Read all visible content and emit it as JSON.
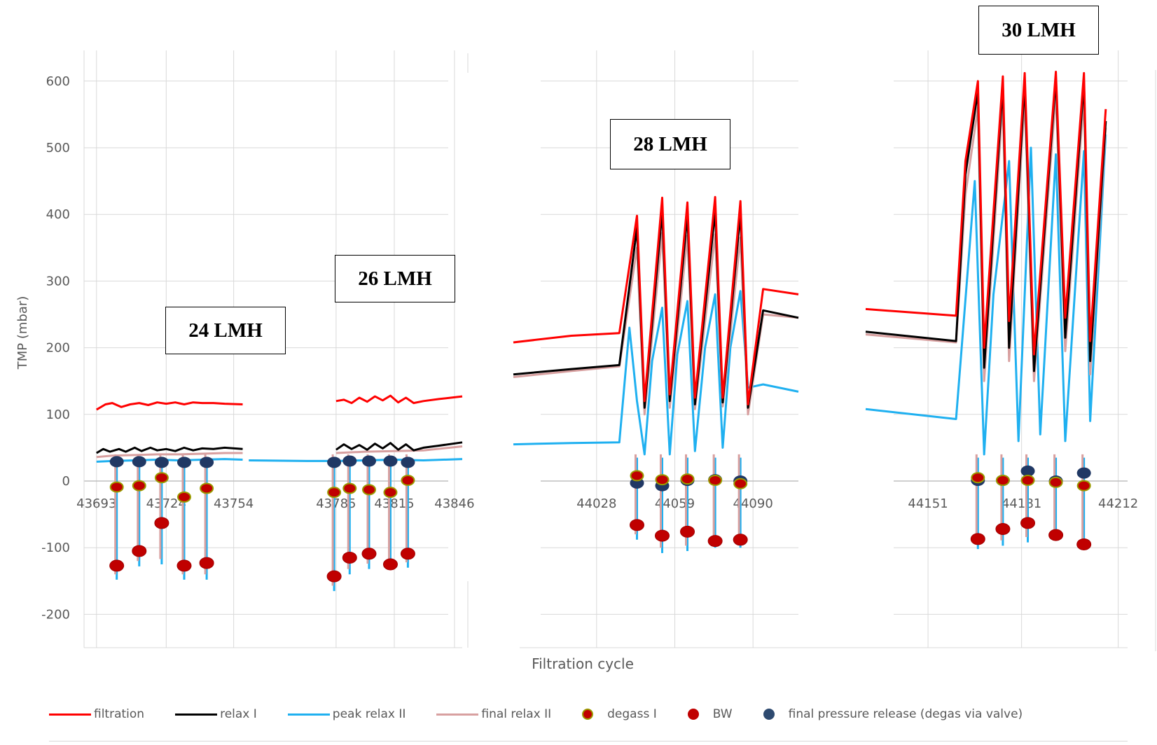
{
  "chart_data": {
    "type": "line",
    "title": "",
    "xlabel": "Filtration cycle",
    "ylabel": "TMP (mbar)",
    "ylim": [
      -200,
      650
    ],
    "yticks": [
      -200,
      -100,
      0,
      100,
      200,
      300,
      400,
      500,
      600
    ],
    "grid": true,
    "legend_position": "bottom",
    "colors": {
      "filtration": "#ff0000",
      "relax I": "#000000",
      "peak relax II": "#1fb0f0",
      "final relax II": "#d8a0a0",
      "degass I": "#c00000",
      "BW": "#c00000",
      "final pressure release (degas via valve)": "#203864"
    },
    "panels": [
      {
        "flux_label": "24 LMH",
        "xlim": [
          43675,
          43770
        ],
        "xticks": [
          "43693",
          "43724",
          "43754"
        ],
        "series": [
          {
            "name": "filtration",
            "x": [
              43693,
              43697,
              43700,
              43704,
              43708,
              43712,
              43716,
              43720,
              43724,
              43728,
              43732,
              43736,
              43740,
              43745,
              43750,
              43758
            ],
            "y": [
              107,
              115,
              117,
              111,
              115,
              117,
              114,
              118,
              116,
              118,
              115,
              118,
              117,
              117,
              116,
              115
            ]
          },
          {
            "name": "relax I",
            "x": [
              43693,
              43696,
              43699,
              43703,
              43706,
              43710,
              43713,
              43717,
              43720,
              43724,
              43728,
              43732,
              43736,
              43740,
              43745,
              43750,
              43758
            ],
            "y": [
              42,
              48,
              44,
              48,
              44,
              50,
              45,
              50,
              46,
              48,
              45,
              50,
              46,
              49,
              48,
              50,
              48
            ]
          },
          {
            "name": "peak relax II",
            "x": [
              43693,
              43700,
              43710,
              43720,
              43730,
              43740,
              43750,
              43758
            ],
            "y": [
              29,
              30,
              31,
              32,
              31,
              32,
              33,
              32
            ]
          },
          {
            "name": "final relax II",
            "x": [
              43693,
              43700,
              43710,
              43720,
              43730,
              43740,
              43750,
              43758
            ],
            "y": [
              36,
              38,
              39,
              40,
              40,
              41,
              42,
              42
            ]
          }
        ],
        "spikes_x": [
          43702,
          43712,
          43722,
          43732,
          43742
        ],
        "spike_min": [
          -148,
          -128,
          -125,
          -148,
          -148
        ],
        "points": {
          "degass I": {
            "x": [
              43702,
              43712,
              43722,
              43732,
              43742
            ],
            "y": [
              -9,
              -7,
              5,
              -24,
              -11
            ]
          },
          "BW": {
            "x": [
              43702,
              43712,
              43722,
              43732,
              43742
            ],
            "y": [
              -127,
              -105,
              -63,
              -127,
              -123
            ]
          },
          "final pressure release (degas via valve)": {
            "x": [
              43702,
              43712,
              43722,
              43732,
              43742
            ],
            "y": [
              29,
              29,
              28,
              28,
              28
            ]
          }
        }
      },
      {
        "flux_label": "26 LMH",
        "xlim": [
          43767,
          43850
        ],
        "xticks": [
          "43785",
          "43815",
          "43846"
        ],
        "series": [
          {
            "name": "filtration",
            "x": [
              43785,
              43789,
              43793,
              43797,
              43801,
              43805,
              43809,
              43813,
              43817,
              43821,
              43825,
              43830,
              43838,
              43850
            ],
            "y": [
              120,
              122,
              117,
              125,
              119,
              127,
              121,
              128,
              118,
              125,
              117,
              120,
              123,
              127
            ]
          },
          {
            "name": "relax I",
            "x": [
              43785,
              43789,
              43793,
              43797,
              43801,
              43805,
              43809,
              43813,
              43817,
              43821,
              43825,
              43830,
              43838,
              43850
            ],
            "y": [
              47,
              55,
              48,
              54,
              47,
              56,
              49,
              57,
              47,
              55,
              46,
              50,
              53,
              58
            ]
          },
          {
            "name": "peak relax II",
            "x": [
              43740,
              43770,
              43785,
              43800,
              43815,
              43830,
              43850
            ],
            "y": [
              31,
              30,
              30,
              31,
              32,
              31,
              33
            ]
          },
          {
            "name": "final relax II",
            "x": [
              43785,
              43800,
              43815,
              43830,
              43850
            ],
            "y": [
              42,
              44,
              45,
              46,
              52
            ]
          }
        ],
        "spikes_x": [
          43784,
          43792,
          43802,
          43813,
          43822
        ],
        "spike_min": [
          -165,
          -140,
          -132,
          -125,
          -130
        ],
        "points": {
          "degass I": {
            "x": [
              43784,
              43792,
              43802,
              43813,
              43822
            ],
            "y": [
              -17,
              -11,
              -13,
              -17,
              1
            ]
          },
          "BW": {
            "x": [
              43784,
              43792,
              43802,
              43813,
              43822
            ],
            "y": [
              -143,
              -115,
              -109,
              -125,
              -109
            ]
          },
          "final pressure release (degas via valve)": {
            "x": [
              43784,
              43792,
              43802,
              43813,
              43822
            ],
            "y": [
              28,
              30,
              30,
              30,
              28
            ]
          }
        }
      },
      {
        "flux_label": "28 LMH",
        "xlim": [
          43995,
          44108
        ],
        "xticks": [
          "44028",
          "44059",
          "44090"
        ],
        "series": [
          {
            "name": "filtration",
            "x": [
              43995,
              44018,
              44037,
              44044,
              44047,
              44054,
              44057,
              44064,
              44067,
              44075,
              44078,
              44085,
              44088,
              44094,
              44108
            ],
            "y": [
              208,
              218,
              222,
              398,
              120,
              425,
              130,
              418,
              125,
              426,
              125,
              420,
              115,
              288,
              280
            ]
          },
          {
            "name": "relax I",
            "x": [
              43995,
              44018,
              44037,
              44044,
              44047,
              44054,
              44057,
              44064,
              44067,
              44075,
              44078,
              44085,
              44088,
              44094,
              44108
            ],
            "y": [
              160,
              168,
              174,
              380,
              110,
              405,
              120,
              400,
              115,
              405,
              118,
              402,
              110,
              256,
              245
            ]
          },
          {
            "name": "peak relax II",
            "x": [
              43995,
              44018,
              44037,
              44041,
              44044,
              44047,
              44050,
              44054,
              44057,
              44060,
              44064,
              44067,
              44071,
              44075,
              44078,
              44081,
              44085,
              44088,
              44094,
              44108
            ],
            "y": [
              55,
              57,
              58,
              230,
              120,
              40,
              180,
              260,
              40,
              190,
              270,
              45,
              200,
              280,
              50,
              200,
              285,
              140,
              145,
              134
            ]
          },
          {
            "name": "final relax II",
            "x": [
              43995,
              44018,
              44037,
              44044,
              44047,
              44054,
              44057,
              44064,
              44067,
              44075,
              44078,
              44085,
              44088,
              44094,
              44108
            ],
            "y": [
              156,
              165,
              172,
              350,
              100,
              372,
              110,
              368,
              108,
              370,
              112,
              365,
              100,
              250,
              245
            ]
          }
        ],
        "spikes_x": [
          44044,
          44054,
          44064,
          44075,
          44085
        ],
        "spike_min": [
          -88,
          -108,
          -105,
          -100,
          -100
        ],
        "points": {
          "degass I": {
            "x": [
              44044,
              44054,
              44064,
              44075,
              44085
            ],
            "y": [
              8,
              2,
              3,
              1,
              -4
            ]
          },
          "BW": {
            "x": [
              44044,
              44054,
              44064,
              44075,
              44085
            ],
            "y": [
              -66,
              -82,
              -76,
              -90,
              -88
            ]
          },
          "final pressure release (degas via valve)": {
            "x": [
              44044,
              44054,
              44064,
              44075,
              44085
            ],
            "y": [
              -3,
              -7,
              1,
              2,
              0
            ]
          }
        }
      },
      {
        "flux_label": "30 LMH",
        "xlim": [
          44131,
          44215
        ],
        "xticks": [
          "44151",
          "44181",
          "44212"
        ],
        "series": [
          {
            "name": "filtration",
            "x": [
              44131,
              44160,
              44163,
              44167,
              44169,
              44175,
              44177,
              44182,
              44185,
              44192,
              44195,
              44201,
              44203,
              44208
            ],
            "y": [
              258,
              248,
              480,
              600,
              200,
              607,
              240,
              612,
              190,
              614,
              245,
              612,
              210,
              558
            ]
          },
          {
            "name": "relax I",
            "x": [
              44131,
              44160,
              44163,
              44167,
              44169,
              44175,
              44177,
              44182,
              44185,
              44192,
              44195,
              44201,
              44203,
              44208
            ],
            "y": [
              224,
              210,
              460,
              585,
              170,
              595,
              200,
              598,
              165,
              605,
              215,
              600,
              180,
              540
            ]
          },
          {
            "name": "peak relax II",
            "x": [
              44131,
              44160,
              44166,
              44169,
              44172,
              44177,
              44180,
              44184,
              44187,
              44192,
              44195,
              44201,
              44203,
              44208
            ],
            "y": [
              108,
              93,
              450,
              40,
              280,
              480,
              60,
              500,
              70,
              490,
              60,
              495,
              90,
              520
            ]
          },
          {
            "name": "final relax II",
            "x": [
              44131,
              44160,
              44163,
              44167,
              44169,
              44175,
              44177,
              44182,
              44185,
              44192,
              44195,
              44201,
              44203,
              44208
            ],
            "y": [
              220,
              208,
              430,
              560,
              150,
              570,
              180,
              575,
              150,
              580,
              195,
              575,
              160,
              530
            ]
          }
        ],
        "spikes_x": [
          44167,
          44175,
          44183,
          44192,
          44201
        ],
        "spike_min": [
          -102,
          -97,
          -92,
          -84,
          -98
        ],
        "points": {
          "degass I": {
            "x": [
              44167,
              44175,
              44183,
              44192,
              44201
            ],
            "y": [
              5,
              1,
              1,
              -2,
              -7
            ]
          },
          "BW": {
            "x": [
              44167,
              44175,
              44183,
              44192,
              44201
            ],
            "y": [
              -87,
              -72,
              -63,
              -81,
              -95
            ]
          },
          "final pressure release (degas via valve)": {
            "x": [
              44167,
              44175,
              44183,
              44192,
              44201
            ],
            "y": [
              1,
              1,
              15,
              0,
              12
            ]
          }
        }
      }
    ]
  },
  "legend": [
    {
      "label": "filtration",
      "kind": "line",
      "color": "#ff0000"
    },
    {
      "label": "relax I",
      "kind": "line",
      "color": "#000000"
    },
    {
      "label": "peak relax II",
      "kind": "line",
      "color": "#1fb0f0"
    },
    {
      "label": "final relax II",
      "kind": "line",
      "color": "#d8a0a0"
    },
    {
      "label": "degass I",
      "kind": "dot",
      "color": "#c00000",
      "edge": "#9a9a00"
    },
    {
      "label": "BW",
      "kind": "dot",
      "color": "#c00000",
      "edge": "#c00000"
    },
    {
      "label": "final pressure release (degas via valve)",
      "kind": "dot",
      "color": "#2e4a70",
      "edge": "#2e4a70"
    }
  ]
}
